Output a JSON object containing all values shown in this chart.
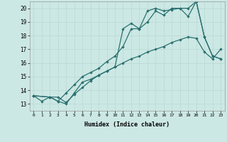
{
  "xlabel": "Humidex (Indice chaleur)",
  "bg_color": "#cce8e4",
  "line_color": "#2a7070",
  "xlim": [
    -0.5,
    23.5
  ],
  "ylim": [
    12.5,
    20.5
  ],
  "xticks": [
    0,
    1,
    2,
    3,
    4,
    5,
    6,
    7,
    8,
    9,
    10,
    11,
    12,
    13,
    14,
    15,
    16,
    17,
    18,
    19,
    20,
    21,
    22,
    23
  ],
  "yticks": [
    13,
    14,
    15,
    16,
    17,
    18,
    19,
    20
  ],
  "line1_x": [
    0,
    1,
    2,
    3,
    4,
    5,
    6,
    7,
    8,
    9,
    10,
    11,
    12,
    13,
    14,
    15,
    16,
    17,
    18,
    19,
    20,
    21,
    22,
    23
  ],
  "line1_y": [
    13.6,
    13.2,
    13.5,
    13.5,
    13.1,
    13.7,
    14.2,
    14.7,
    15.1,
    15.4,
    15.7,
    16.0,
    16.3,
    16.5,
    16.8,
    17.0,
    17.2,
    17.5,
    17.7,
    17.9,
    17.8,
    16.8,
    16.3,
    17.0
  ],
  "line2_x": [
    0,
    2,
    3,
    4,
    5,
    6,
    7,
    8,
    9,
    10,
    11,
    12,
    13,
    14,
    15,
    16,
    17,
    18,
    19,
    20,
    21,
    22,
    23
  ],
  "line2_y": [
    13.6,
    13.5,
    13.2,
    13.8,
    14.4,
    15.0,
    15.3,
    15.6,
    16.1,
    16.5,
    17.2,
    18.5,
    18.5,
    19.0,
    19.8,
    19.5,
    20.0,
    20.0,
    20.0,
    20.5,
    17.9,
    16.5,
    16.3
  ],
  "line3_x": [
    0,
    2,
    3,
    4,
    5,
    6,
    7,
    8,
    9,
    10,
    11,
    12,
    13,
    14,
    15,
    16,
    17,
    18,
    19,
    20,
    21,
    22,
    23
  ],
  "line3_y": [
    13.6,
    13.5,
    13.2,
    13.0,
    13.8,
    14.6,
    14.8,
    15.1,
    15.4,
    15.7,
    18.5,
    18.9,
    18.5,
    19.8,
    20.0,
    19.8,
    19.9,
    20.0,
    19.4,
    20.5,
    17.9,
    16.5,
    16.3
  ],
  "grid_color": "#b8d8d4",
  "marker_size": 2.2,
  "linewidth": 0.9
}
